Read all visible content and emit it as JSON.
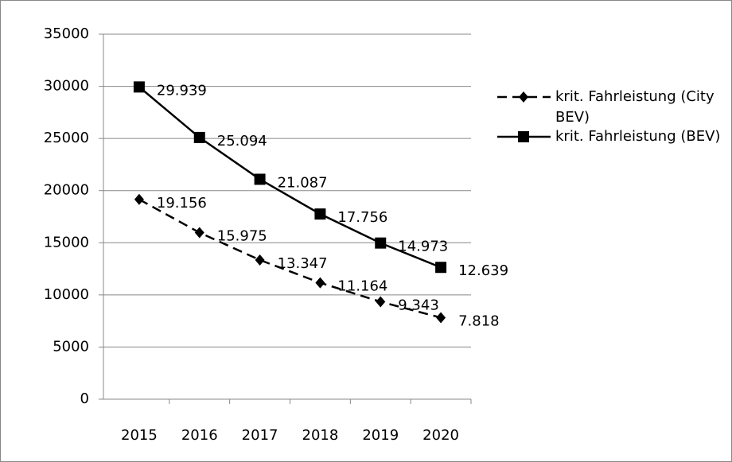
{
  "chart_data": {
    "type": "line",
    "categories": [
      "2015",
      "2016",
      "2017",
      "2018",
      "2019",
      "2020"
    ],
    "series": [
      {
        "name": "krit. Fahrleistung (City BEV)",
        "color": "#000000",
        "dash": "dashed",
        "marker": "diamond",
        "values": [
          19156,
          15975,
          13347,
          11164,
          9343,
          7818
        ],
        "value_labels": [
          "19.156",
          "15.975",
          "13.347",
          "11.164",
          "9.343",
          "7.818"
        ]
      },
      {
        "name": "krit. Fahrleistung (BEV)",
        "color": "#000000",
        "dash": "solid",
        "marker": "square",
        "values": [
          29939,
          25094,
          21087,
          17756,
          14973,
          12639
        ],
        "value_labels": [
          "29.939",
          "25.094",
          "21.087",
          "17.756",
          "14.973",
          "12.639"
        ]
      }
    ],
    "ylim": [
      0,
      35000
    ],
    "yticks": [
      0,
      5000,
      10000,
      15000,
      20000,
      25000,
      30000,
      35000
    ],
    "grid": true,
    "legend": "right"
  }
}
